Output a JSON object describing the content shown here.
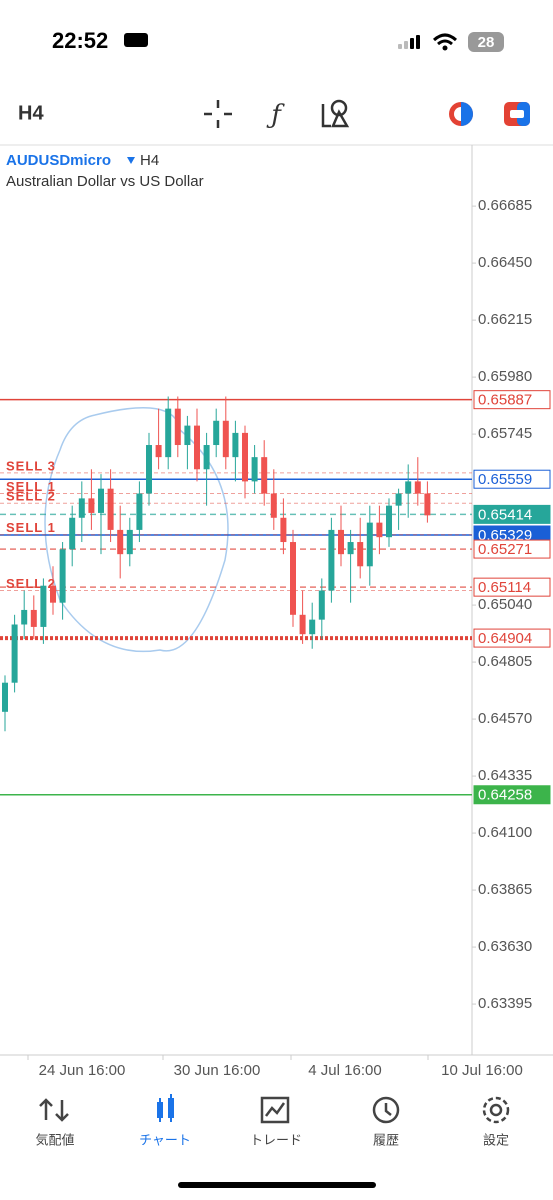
{
  "status_bar": {
    "time": "22:52",
    "battery": "28"
  },
  "toolbar": {
    "timeframe": "H4"
  },
  "chart_data": {
    "type": "candlestick",
    "symbol": "AUDUSDmicro",
    "timeframe": "H4",
    "description": "Australian Dollar vs US Dollar",
    "up_color": "#26a69a",
    "down_color": "#ef5350",
    "ylim": [
      0.63185,
      0.66937
    ],
    "yticks": [
      0.66685,
      {
        "value": 0.6645,
        "label": "0.66450"
      },
      0.66215,
      {
        "value": 0.6598,
        "label": "0.65980"
      },
      0.65745,
      {
        "value": 0.6504,
        "label": "0.65040"
      },
      0.64805,
      {
        "value": 0.6457,
        "label": "0.64570"
      },
      0.64335,
      {
        "value": 0.641,
        "label": "0.64100"
      },
      0.63865,
      {
        "value": 0.6363,
        "label": "0.63630"
      },
      0.63395
    ],
    "xticks": [
      "24 Jun 16:00",
      "30 Jun 16:00",
      "4 Jul 16:00",
      "10 Jul 16:00"
    ],
    "price_lines": [
      {
        "value": 0.65887,
        "color": "#e0443a",
        "style": "solid",
        "label_style": "outline"
      },
      {
        "value": 0.65559,
        "color": "#1a5fd6",
        "style": "solid",
        "label_style": "outline"
      },
      {
        "value": 0.65414,
        "color": "#26a69a",
        "style": "dashed",
        "label_style": "filled"
      },
      {
        "value": 0.65329,
        "color": "#1a5fd6",
        "style": "solid",
        "label_style": "filled"
      },
      {
        "value": 0.65271,
        "color": "#e0443a",
        "style": "dashed",
        "label_style": "outline"
      },
      {
        "value": 0.65114,
        "color": "#e0443a",
        "style": "dashed",
        "label_style": "outline"
      },
      {
        "value": 0.64904,
        "color": "#e0443a",
        "style": "dotted",
        "label_style": "outline"
      },
      {
        "value": 0.64258,
        "color": "#3cb44b",
        "style": "solid",
        "label_style": "filled"
      }
    ],
    "order_labels": [
      {
        "label": "SELL 3",
        "value": 0.65585
      },
      {
        "label": "SELL 1",
        "value": 0.655
      },
      {
        "label": "SELL 2",
        "value": 0.6546
      },
      {
        "label": "SELL 1",
        "value": 0.6533
      },
      {
        "label": "SELL 2",
        "value": 0.651
      }
    ],
    "open": [
      0.646,
      0.6472,
      0.6496,
      0.6502,
      0.6495,
      0.6512,
      0.6505,
      0.6527,
      0.654,
      0.6548,
      0.6542,
      0.6552,
      0.6535,
      0.6525,
      0.6535,
      0.655,
      0.657,
      0.6565,
      0.6585,
      0.657,
      0.6578,
      0.656,
      0.657,
      0.658,
      0.6565,
      0.6575,
      0.6555,
      0.6565,
      0.655,
      0.654,
      0.653,
      0.65,
      0.6492,
      0.6498,
      0.651,
      0.6535,
      0.6525,
      0.653,
      0.652,
      0.6538,
      0.6532,
      0.6545,
      0.655,
      0.6555,
      0.655
    ],
    "high": [
      0.6475,
      0.65,
      0.651,
      0.6508,
      0.6515,
      0.652,
      0.653,
      0.6545,
      0.6555,
      0.656,
      0.6558,
      0.656,
      0.6545,
      0.654,
      0.6555,
      0.6575,
      0.6585,
      0.659,
      0.659,
      0.6582,
      0.6585,
      0.6575,
      0.6585,
      0.659,
      0.658,
      0.6578,
      0.657,
      0.6572,
      0.656,
      0.6548,
      0.6535,
      0.651,
      0.6505,
      0.6515,
      0.654,
      0.6545,
      0.6535,
      0.654,
      0.6545,
      0.6545,
      0.6548,
      0.6552,
      0.6562,
      0.6565,
      0.6555
    ],
    "low": [
      0.6452,
      0.6468,
      0.649,
      0.649,
      0.6488,
      0.65,
      0.6498,
      0.652,
      0.653,
      0.6535,
      0.6525,
      0.653,
      0.6515,
      0.652,
      0.653,
      0.6545,
      0.656,
      0.656,
      0.6565,
      0.656,
      0.6555,
      0.6545,
      0.6565,
      0.656,
      0.6555,
      0.6548,
      0.655,
      0.6545,
      0.6535,
      0.6525,
      0.6495,
      0.6488,
      0.6486,
      0.649,
      0.6505,
      0.652,
      0.6505,
      0.6515,
      0.6512,
      0.6525,
      0.6528,
      0.6535,
      0.654,
      0.6545,
      0.6538
    ],
    "close": [
      0.6472,
      0.6496,
      0.6502,
      0.6495,
      0.6512,
      0.6505,
      0.6527,
      0.654,
      0.6548,
      0.6542,
      0.6552,
      0.6535,
      0.6525,
      0.6535,
      0.655,
      0.657,
      0.6565,
      0.6585,
      0.657,
      0.6578,
      0.656,
      0.657,
      0.658,
      0.6565,
      0.6575,
      0.6555,
      0.6565,
      0.655,
      0.654,
      0.653,
      0.65,
      0.6492,
      0.6498,
      0.651,
      0.6535,
      0.6525,
      0.653,
      0.652,
      0.6538,
      0.6532,
      0.6545,
      0.655,
      0.6555,
      0.655,
      0.6541
    ]
  },
  "nav": {
    "items": [
      {
        "label": "気配値",
        "active": false
      },
      {
        "label": "チャート",
        "active": true
      },
      {
        "label": "トレード",
        "active": false
      },
      {
        "label": "履歴",
        "active": false
      },
      {
        "label": "設定",
        "active": false
      }
    ]
  }
}
